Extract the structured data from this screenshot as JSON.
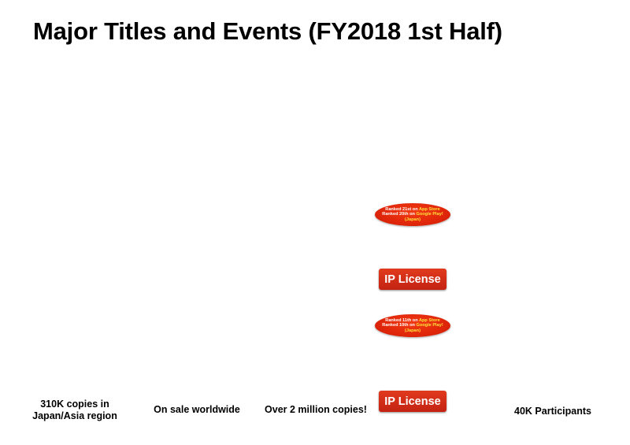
{
  "slide": {
    "title": "Major Titles and Events (FY2018 1st Half)"
  },
  "badges": [
    {
      "line1_prefix": "Ranked 21st on ",
      "line1_store": "App Store",
      "line2_prefix": "Ranked 20th on ",
      "line2_store": "Google Play!",
      "region": "(Japan)"
    },
    {
      "line1_prefix": "Ranked 11th on ",
      "line1_store": "App Store",
      "line2_prefix": "Ranked 10th on ",
      "line2_store": "Google Play!",
      "region": "(Japan)"
    }
  ],
  "ip_labels": [
    "IP License",
    "IP License"
  ],
  "captions": {
    "c1_line1": "310K copies in",
    "c1_line2": "Japan/Asia region",
    "c2": "On sale worldwide",
    "c3": "Over 2 million copies!",
    "c4": "40K Participants"
  },
  "colors": {
    "badge_red": "#e0260a",
    "badge_highlight": "#ffe23a",
    "ip_red": "#c32312"
  }
}
